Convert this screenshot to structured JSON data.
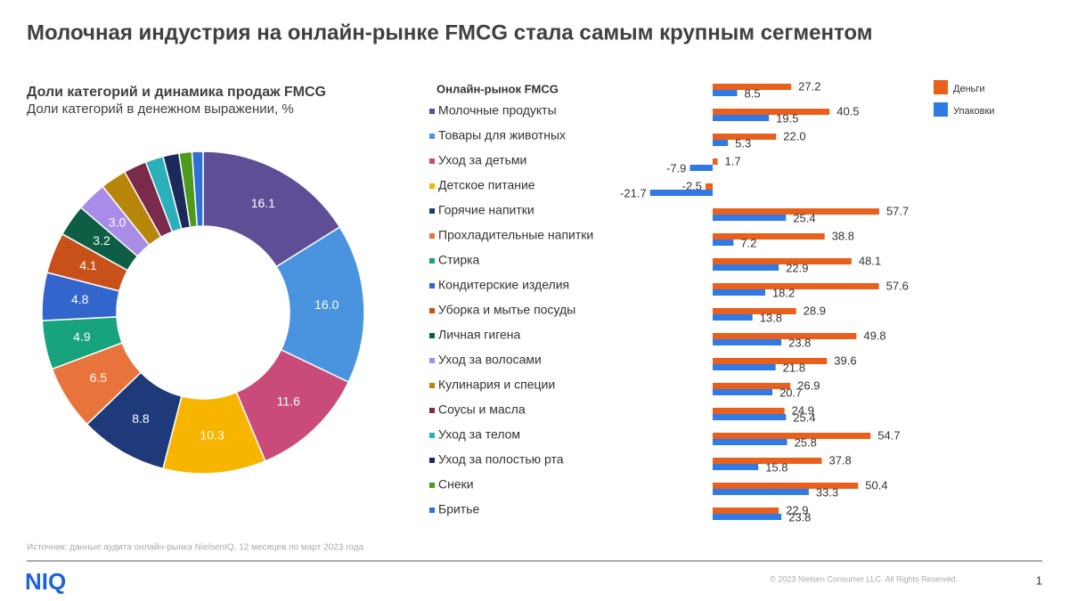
{
  "header": {
    "title": "Молочная индустрия на онлайн-рынке FMCG стала самым крупным сегментом"
  },
  "chart_data": [
    {
      "type": "donut",
      "title": "Доли категорий и динамика продаж FMCG",
      "subtitle": "Доли категорий в денежном выражении, %",
      "values": [
        16.1,
        16.0,
        11.6,
        10.3,
        8.8,
        6.5,
        4.9,
        4.8,
        4.1,
        3.2,
        3.0,
        2.6,
        2.3,
        1.8,
        1.6,
        1.3,
        1.1
      ],
      "value_labels": [
        "16.1",
        "16.0",
        "11.6",
        "10.3",
        "8.8",
        "6.5",
        "4.9",
        "4.8",
        "4.1",
        "3.2",
        "3.0",
        null,
        null,
        null,
        null,
        null,
        null
      ],
      "colors": [
        "#5f4e96",
        "#4a94df",
        "#c94b7a",
        "#f7b500",
        "#1f3a7a",
        "#e8743b",
        "#17a37b",
        "#3366cc",
        "#c8511a",
        "#0d5e45",
        "#a98be8",
        "#b8860b",
        "#7a2a4a",
        "#2ab0b8",
        "#1c2a5a",
        "#4c9a1e",
        "#2f6fd6"
      ]
    },
    {
      "type": "bar",
      "orientation": "horizontal",
      "categories": [
        "Онлайн-рынок FMCG",
        "Молочные продукты",
        "Товары для животных",
        "Уход за детьми",
        "Детское питание",
        "Горячие напитки",
        "Прохладительные напитки",
        "Стирка",
        "Кондитерские изделия",
        "Уборка и мытье посуды",
        "Личная гигена",
        "Уход за волосами",
        "Кулинария и специи",
        "Соусы и масла",
        "Уход за телом",
        "Уход за полостью рта",
        "Снеки",
        "Бритье"
      ],
      "series": [
        {
          "name": "Деньги",
          "color": "#e8601c",
          "values": [
            27.2,
            40.5,
            22.0,
            1.7,
            -2.5,
            57.7,
            38.8,
            48.1,
            57.6,
            28.9,
            49.8,
            39.6,
            26.9,
            24.9,
            54.7,
            37.8,
            50.4,
            22.9
          ],
          "value_labels": [
            "27.2",
            "40.5",
            "22.0",
            "1.7",
            "-2.5",
            "57.7",
            "38.8",
            "48.1",
            "57.6",
            "28.9",
            "49.8",
            "39.6",
            "26.9",
            "24.9",
            "54.7",
            "37.8",
            "50.4",
            "22.9"
          ]
        },
        {
          "name": "Упаковки",
          "color": "#2f7ae5",
          "values": [
            8.5,
            19.5,
            5.3,
            -7.9,
            -21.7,
            25.4,
            7.2,
            22.9,
            18.2,
            13.8,
            23.8,
            21.8,
            20.7,
            25.4,
            25.8,
            15.8,
            33.3,
            23.8
          ],
          "value_labels": [
            "8.5",
            "19.5",
            "5.3",
            "-7.9",
            "-21.7",
            "25.4",
            "7.2",
            "22.9",
            "18.2",
            "13.8",
            "23.8",
            "21.8",
            "20.7",
            "25.4",
            "25.8",
            "15.8",
            "33.3",
            "23.8"
          ]
        }
      ]
    }
  ],
  "footer": {
    "source": "Источник: данные аудита онлайн-рынка NielsenIQ, 12 месяцев по март 2023 года",
    "logo": "NIQ",
    "copyright": "© 2023 Nielsen Consumer LLC. All Rights Reserved.",
    "page": "1"
  }
}
